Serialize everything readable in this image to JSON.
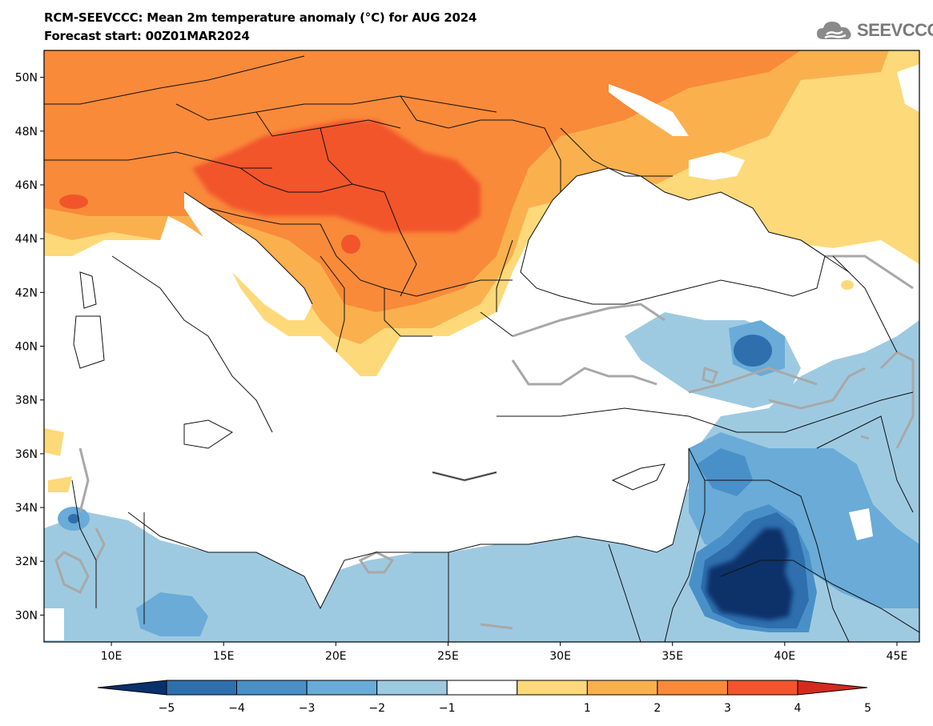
{
  "title": "RCM-SEEVCCC: Mean 2m temperature anomaly (°C) for AUG 2024",
  "subtitle": "Forecast start: 00Z01MAR2024",
  "logo": {
    "text": "SEEVCCC",
    "icon": "cloud-icon"
  },
  "map": {
    "lon_range": [
      7,
      46
    ],
    "lat_range": [
      29,
      51
    ],
    "lat_labels": [
      "50N",
      "48N",
      "46N",
      "44N",
      "42N",
      "40N",
      "38N",
      "36N",
      "34N",
      "32N",
      "30N"
    ],
    "lon_labels": [
      "10E",
      "15E",
      "20E",
      "25E",
      "30E",
      "35E",
      "40E",
      "45E"
    ]
  },
  "colorbar": {
    "ticks": [
      "−5",
      "−4",
      "−3",
      "−2",
      "−1",
      "1",
      "2",
      "3",
      "4",
      "5"
    ],
    "colors": [
      "#08306b",
      "#2f6fae",
      "#4a90c8",
      "#6aabd8",
      "#9ecae1",
      "#ffffff",
      "#fdd97a",
      "#fbb04e",
      "#f98a3a",
      "#f2552b",
      "#d42a1e"
    ]
  }
}
